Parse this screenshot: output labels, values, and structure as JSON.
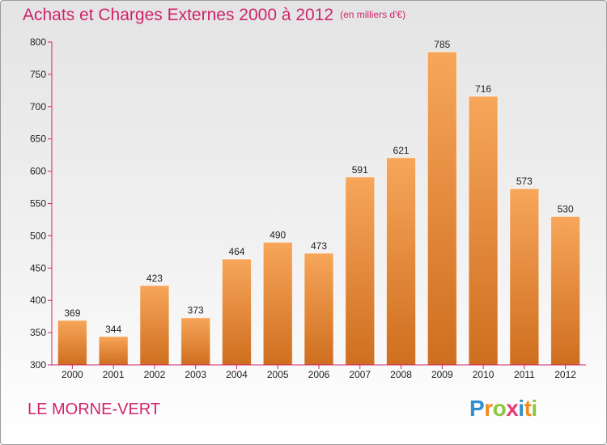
{
  "title": "Achats et Charges Externes 2000 à 2012",
  "unit": "(en milliers d'€)",
  "footer_label": "LE MORNE-VERT",
  "logo": {
    "letters": [
      "P",
      "r",
      "o",
      "x",
      "i",
      "t",
      "i"
    ],
    "colors": [
      "#2f8fd0",
      "#f28b1e",
      "#8dc63f",
      "#e63c78",
      "#2f8fd0",
      "#f28b1e",
      "#8dc63f"
    ]
  },
  "colors": {
    "accent": "#d0246b",
    "bar_light": "#f7a65a",
    "bar_dark": "#cf6e1f",
    "axis": "#d0246b"
  },
  "chart_data": {
    "type": "bar",
    "title": "Achats et Charges Externes 2000 à 2012",
    "categories": [
      "2000",
      "2001",
      "2002",
      "2003",
      "2004",
      "2005",
      "2006",
      "2007",
      "2008",
      "2009",
      "2010",
      "2011",
      "2012"
    ],
    "values": [
      369,
      344,
      423,
      373,
      464,
      490,
      473,
      591,
      621,
      785,
      716,
      573,
      530
    ],
    "ylim": [
      300,
      800
    ],
    "yticks": [
      300,
      350,
      400,
      450,
      500,
      550,
      600,
      650,
      700,
      750,
      800
    ],
    "grid": false,
    "legend": "none"
  }
}
